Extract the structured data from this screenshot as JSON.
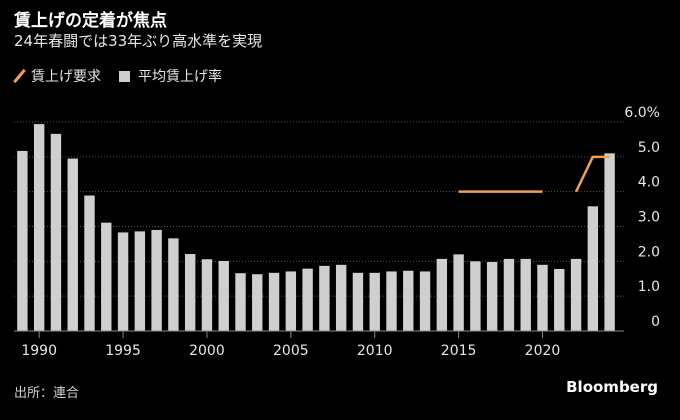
{
  "title": "賃上げの定着が焦点",
  "subtitle": "24年春闘では33年ぶり高水準を実現",
  "legend": {
    "line_label": "賃上げ要求",
    "bar_label": "平均賃上げ率"
  },
  "source": "出所：連合",
  "brand": "Bloomberg",
  "colors": {
    "bar": "#cfcfcf",
    "line": "#f0a050",
    "grid": "#555555",
    "text": "#e6e6e6"
  },
  "chart_data": {
    "type": "bar",
    "title": "賃上げの定着が焦点",
    "subtitle": "24年春闘では33年ぶり高水準を実現",
    "ylim": [
      0,
      6
    ],
    "yticks": [
      0,
      1,
      2,
      3,
      4,
      5,
      6
    ],
    "ytick_labels": [
      "0",
      "1.0",
      "2.0",
      "3.0",
      "4.0",
      "5.0",
      "6.0%"
    ],
    "xticks": [
      1990,
      1995,
      2000,
      2005,
      2010,
      2015,
      2020
    ],
    "grid": true,
    "legend_position": "top-left",
    "series": [
      {
        "name": "平均賃上げ率",
        "kind": "bar",
        "x": [
          1989,
          1990,
          1991,
          1992,
          1993,
          1994,
          1995,
          1996,
          1997,
          1998,
          1999,
          2000,
          2001,
          2002,
          2003,
          2004,
          2005,
          2006,
          2007,
          2008,
          2009,
          2010,
          2011,
          2012,
          2013,
          2014,
          2015,
          2016,
          2017,
          2018,
          2019,
          2020,
          2021,
          2022,
          2023,
          2024
        ],
        "values": [
          5.17,
          5.94,
          5.66,
          4.95,
          3.89,
          3.11,
          2.83,
          2.86,
          2.9,
          2.66,
          2.21,
          2.06,
          2.01,
          1.66,
          1.63,
          1.67,
          1.71,
          1.79,
          1.87,
          1.9,
          1.67,
          1.67,
          1.71,
          1.73,
          1.71,
          2.07,
          2.2,
          2.0,
          1.98,
          2.07,
          2.07,
          1.9,
          1.78,
          2.07,
          3.58,
          5.1
        ]
      },
      {
        "name": "賃上げ要求",
        "kind": "line",
        "segments": [
          {
            "x": [
              2015,
              2016,
              2017,
              2018,
              2019,
              2020
            ],
            "values": [
              4.0,
              4.0,
              4.0,
              4.0,
              4.0,
              4.0
            ]
          },
          {
            "x": [
              2022,
              2023,
              2024
            ],
            "values": [
              4.0,
              5.0,
              5.0
            ]
          }
        ]
      }
    ]
  }
}
